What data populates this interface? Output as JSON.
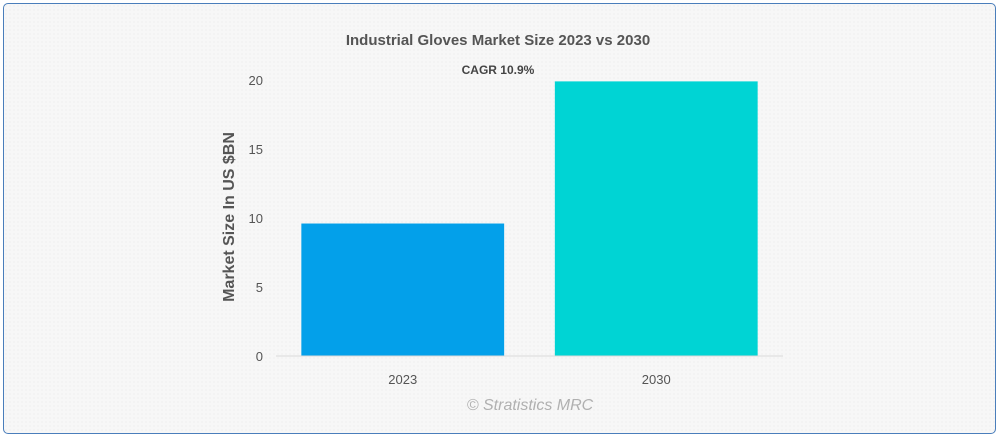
{
  "chart_data": {
    "type": "bar",
    "title": "Industrial Gloves Market Size 2023 vs 2030",
    "annotation": "CAGR 10.9%",
    "xlabel": "",
    "ylabel": "Market Size In US $BN",
    "categories": [
      "2023",
      "2030"
    ],
    "values": [
      9.6,
      19.9
    ],
    "colors": [
      "#03a0ea",
      "#00d4d4"
    ],
    "ylim": [
      0,
      20
    ],
    "yticks": [
      0,
      5,
      10,
      15,
      20
    ],
    "grid": false,
    "legend": "none"
  },
  "credit": "© Stratistics MRC"
}
